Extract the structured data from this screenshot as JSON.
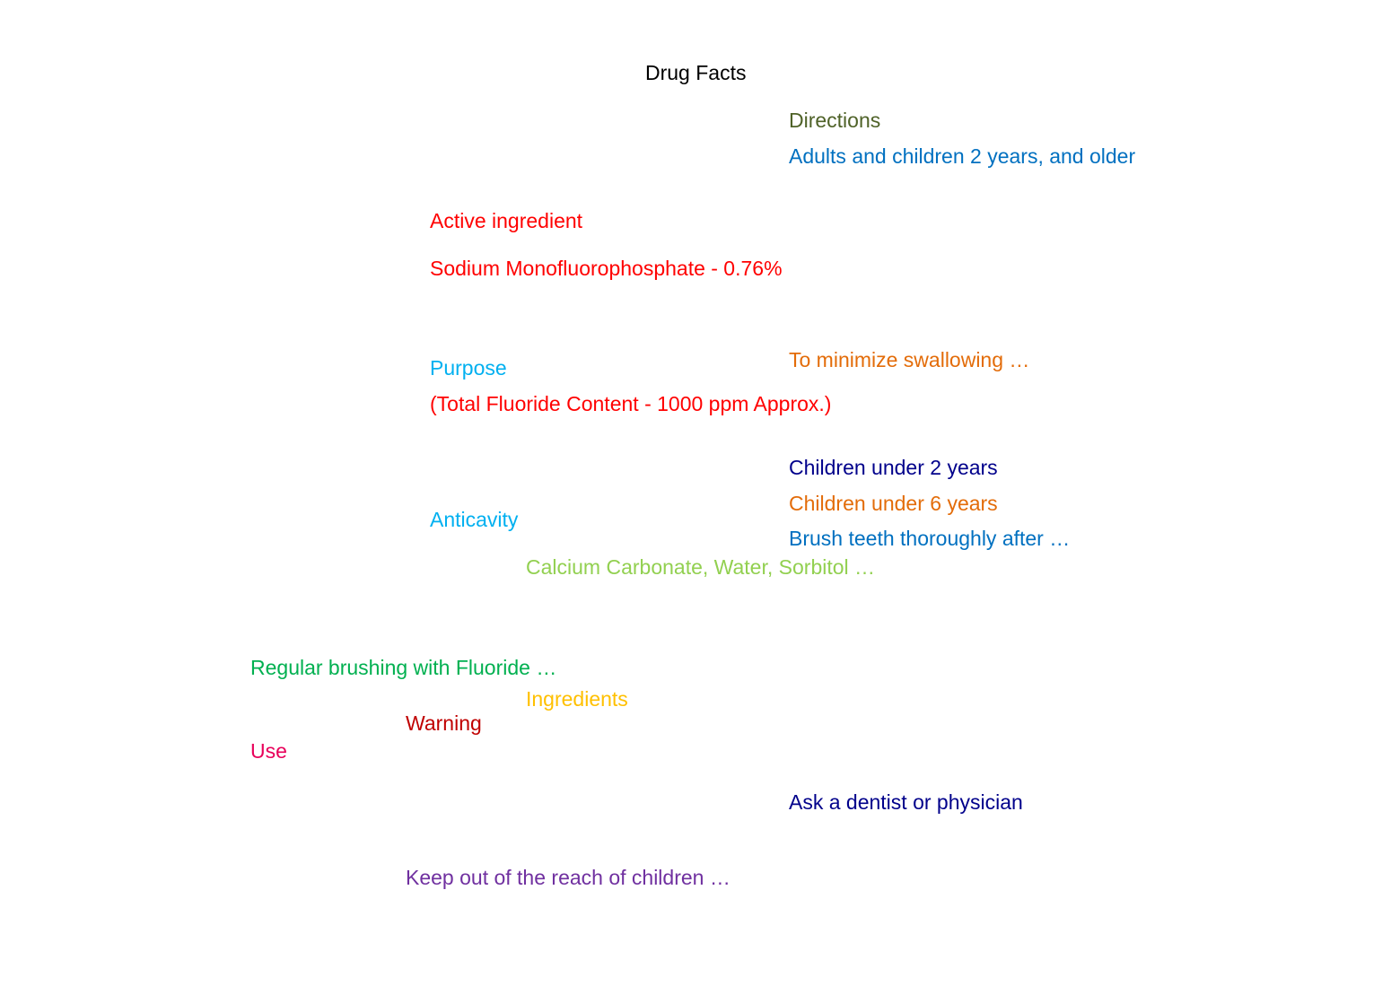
{
  "title": {
    "text": "Drug Facts",
    "color": "#000000"
  },
  "labels": {
    "directions": {
      "text": "Directions",
      "color": "#4F6228"
    },
    "adults": {
      "text": "Adults and children 2 years, and older",
      "color": "#0070C0"
    },
    "active": {
      "text": "Active ingredient",
      "color": "#FF0000"
    },
    "sodium": {
      "text": "Sodium Monofluorophosphate - 0.76%",
      "color": "#FF0000"
    },
    "minimize": {
      "text": "To minimize swallowing …",
      "color": "#E36C09"
    },
    "purpose": {
      "text": "Purpose",
      "color": "#00B0F0"
    },
    "total": {
      "text": "(Total Fluoride Content - 1000 ppm Approx.)",
      "color": "#FF0000"
    },
    "under2": {
      "text": "Children under 2 years",
      "color": "#00008B"
    },
    "under6": {
      "text": "Children under 6 years",
      "color": "#E36C09"
    },
    "anticavity": {
      "text": "Anticavity",
      "color": "#00B0F0"
    },
    "brush": {
      "text": "Brush teeth thoroughly after …",
      "color": "#0070C0"
    },
    "calcium": {
      "text": "Calcium Carbonate, Water, Sorbitol …",
      "color": "#92D050"
    },
    "regular": {
      "text": "Regular brushing with Fluoride …",
      "color": "#00B050"
    },
    "ingredients": {
      "text": "Ingredients",
      "color": "#FFC000"
    },
    "warning": {
      "text": "Warning",
      "color": "#C00000"
    },
    "use": {
      "text": "Use",
      "color": "#E8005A"
    },
    "ask": {
      "text": "Ask a dentist or physician",
      "color": "#00008B"
    },
    "keep": {
      "text": "Keep out of the reach of children …",
      "color": "#7030A0"
    }
  }
}
